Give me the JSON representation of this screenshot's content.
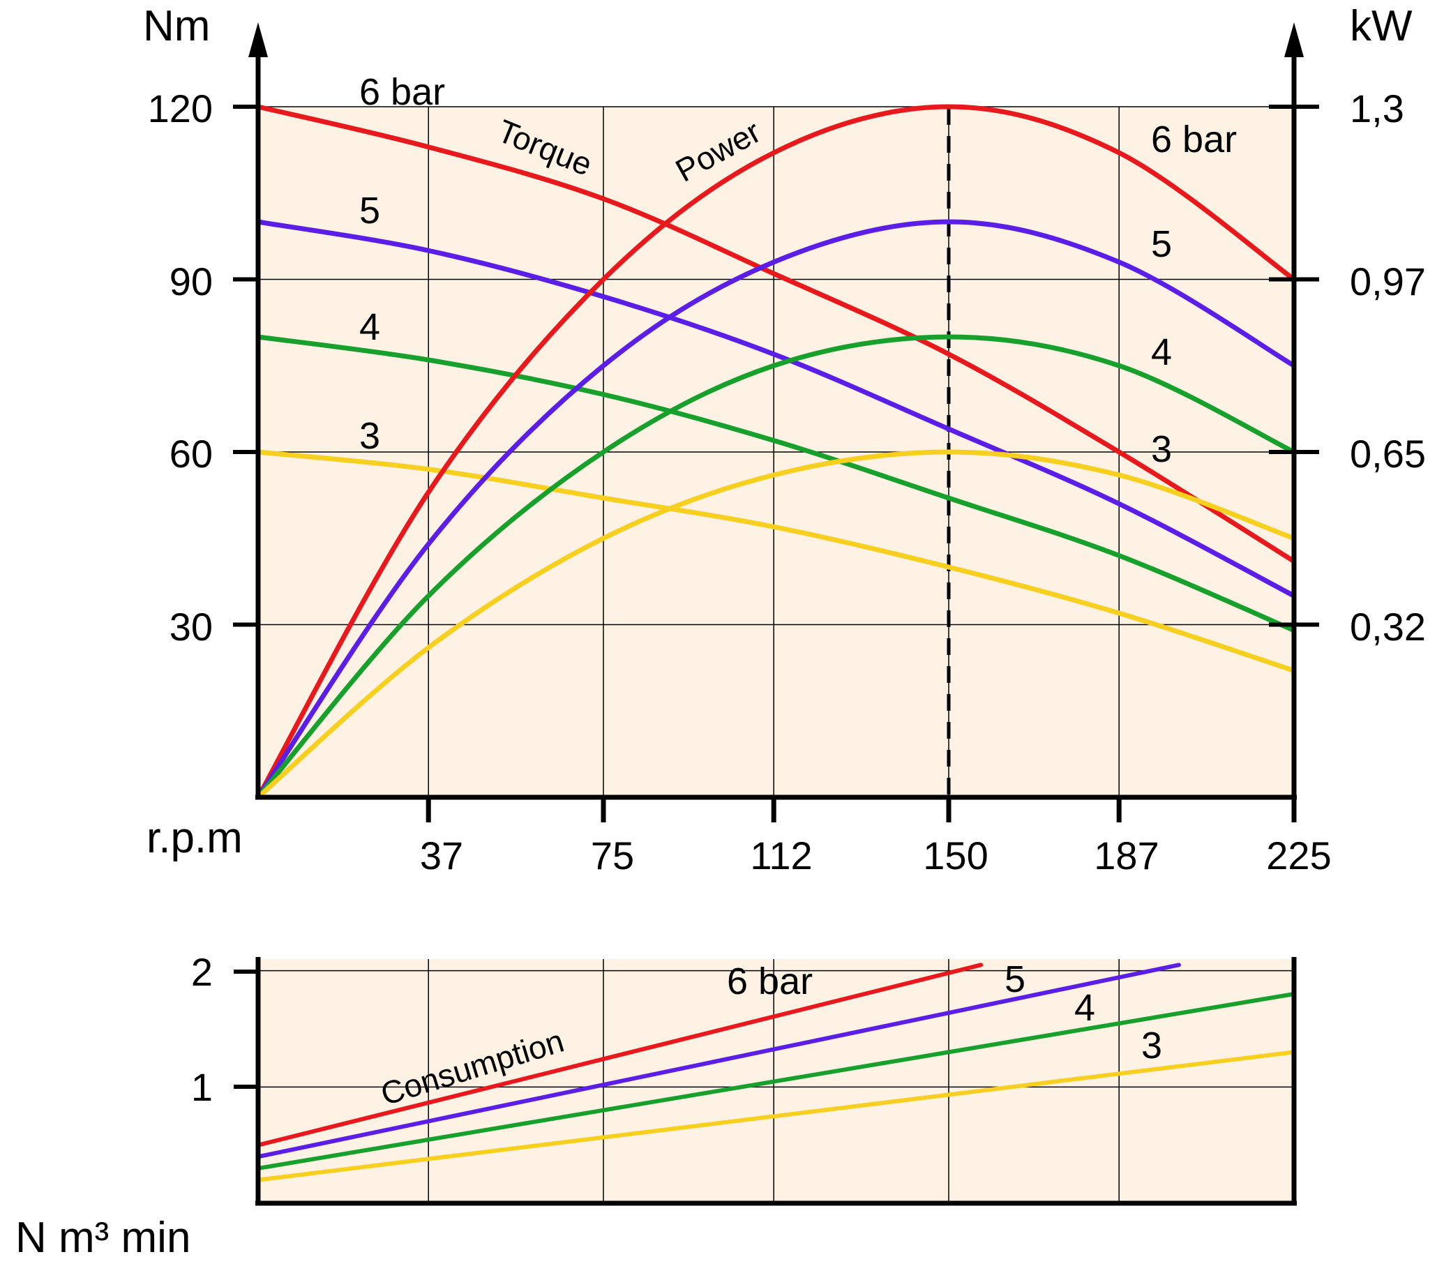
{
  "chart_data": [
    {
      "type": "line",
      "title": "",
      "xlabel": "r.p.m",
      "ylabel_left": "Nm",
      "ylabel_right": "kW",
      "x_ticks": [
        "37",
        "75",
        "112",
        "150",
        "187",
        "225"
      ],
      "y_left_ticks": [
        "30",
        "60",
        "90",
        "120"
      ],
      "y_right_ticks": [
        "0,32",
        "0,65",
        "0,97",
        "1,3"
      ],
      "xlim": [
        0,
        225
      ],
      "ylim_left": [
        0,
        120
      ],
      "grid": true,
      "reference_line": {
        "x": 150,
        "style": "dashed"
      },
      "annotations": {
        "torque": "Torque",
        "power": "Power"
      },
      "colors": {
        "6 bar": "#e8191c",
        "5": "#5a1ee6",
        "4": "#18a02c",
        "3": "#f7cf1e"
      },
      "series_labels": {
        "torque": [
          {
            "text": "6 bar",
            "pressure": "6 bar"
          },
          {
            "text": "5",
            "pressure": "5"
          },
          {
            "text": "4",
            "pressure": "4"
          },
          {
            "text": "3",
            "pressure": "3"
          }
        ],
        "power": [
          {
            "text": "6 bar",
            "pressure": "6 bar"
          },
          {
            "text": "5",
            "pressure": "5"
          },
          {
            "text": "4",
            "pressure": "4"
          },
          {
            "text": "3",
            "pressure": "3"
          }
        ]
      },
      "series": [
        {
          "name": "6 bar",
          "kind": "torque",
          "x": [
            0,
            37,
            75,
            112,
            150,
            187,
            225
          ],
          "y": [
            120,
            113,
            104,
            91,
            77,
            60,
            41
          ]
        },
        {
          "name": "5",
          "kind": "torque",
          "x": [
            0,
            37,
            75,
            112,
            150,
            187,
            225
          ],
          "y": [
            100,
            95,
            87,
            77,
            64,
            51,
            35
          ]
        },
        {
          "name": "4",
          "kind": "torque",
          "x": [
            0,
            37,
            75,
            112,
            150,
            187,
            225
          ],
          "y": [
            80,
            76,
            70,
            62,
            52,
            42,
            29
          ]
        },
        {
          "name": "3",
          "kind": "torque",
          "x": [
            0,
            37,
            75,
            112,
            150,
            187,
            225
          ],
          "y": [
            60,
            57,
            52,
            47,
            40,
            32,
            22
          ]
        },
        {
          "name": "6 bar",
          "kind": "power",
          "x": [
            0,
            37,
            75,
            112,
            150,
            187,
            225
          ],
          "y": [
            0,
            53,
            90,
            112,
            120,
            112,
            90
          ]
        },
        {
          "name": "5",
          "kind": "power",
          "x": [
            0,
            37,
            75,
            112,
            150,
            187,
            225
          ],
          "y": [
            0,
            44,
            75,
            93,
            100,
            93,
            75
          ]
        },
        {
          "name": "4",
          "kind": "power",
          "x": [
            0,
            37,
            75,
            112,
            150,
            187,
            225
          ],
          "y": [
            0,
            35,
            60,
            75,
            80,
            75,
            60
          ]
        },
        {
          "name": "3",
          "kind": "power",
          "x": [
            0,
            37,
            75,
            112,
            150,
            187,
            225
          ],
          "y": [
            0,
            26,
            45,
            56,
            60,
            56,
            45
          ]
        }
      ]
    },
    {
      "type": "line",
      "title": "",
      "ylabel": "N m³ min",
      "y_ticks": [
        "1",
        "2"
      ],
      "xlim": [
        0,
        225
      ],
      "ylim": [
        0,
        2.1
      ],
      "grid": true,
      "annotation": "Consumption",
      "series_labels": [
        {
          "text": "6 bar",
          "pressure": "6 bar"
        },
        {
          "text": "5",
          "pressure": "5"
        },
        {
          "text": "4",
          "pressure": "4"
        },
        {
          "text": "3",
          "pressure": "3"
        }
      ],
      "series": [
        {
          "name": "6 bar",
          "x": [
            0,
            157
          ],
          "y": [
            0.5,
            2.05
          ]
        },
        {
          "name": "5",
          "x": [
            0,
            200
          ],
          "y": [
            0.4,
            2.05
          ]
        },
        {
          "name": "4",
          "x": [
            0,
            225
          ],
          "y": [
            0.3,
            1.8
          ]
        },
        {
          "name": "3",
          "x": [
            0,
            225
          ],
          "y": [
            0.2,
            1.3
          ]
        }
      ]
    }
  ]
}
